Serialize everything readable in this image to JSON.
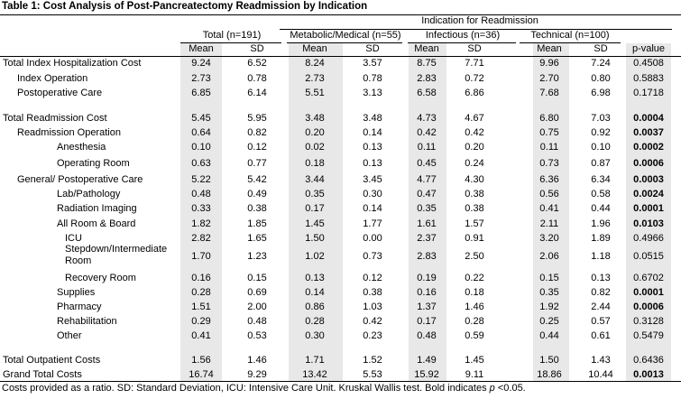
{
  "caption": "Table 1: Cost Analysis of Post-Pancreatectomy Readmission by Indication",
  "group_header": "Indication for Readmission",
  "column_groups": [
    {
      "label": "Total (n=191)"
    },
    {
      "label": "Metabolic/Medical (n=55)"
    },
    {
      "label": "Infectious (n=36)"
    },
    {
      "label": "Technical (n=100)"
    }
  ],
  "subheaders": [
    "Mean",
    "SD",
    "Mean",
    "SD",
    "Mean",
    "SD",
    "Mean",
    "SD",
    "p-value"
  ],
  "rows": [
    {
      "label": "Total Index Hospitalization Cost",
      "indent": 0,
      "values": [
        "9.24",
        "6.52",
        "8.24",
        "3.57",
        "8.75",
        "7.71",
        "9.96",
        "7.24",
        "0.4508"
      ],
      "p_bold": false
    },
    {
      "label": "Index Operation",
      "indent": 1,
      "values": [
        "2.73",
        "0.78",
        "2.73",
        "0.78",
        "2.83",
        "0.72",
        "2.70",
        "0.80",
        "0.5883"
      ],
      "p_bold": false
    },
    {
      "label": "Postoperative Care",
      "indent": 1,
      "values": [
        "6.85",
        "6.14",
        "5.51",
        "3.13",
        "6.58",
        "6.86",
        "7.68",
        "6.98",
        "0.1718"
      ],
      "p_bold": false
    },
    {
      "label": "Total Readmission Cost",
      "indent": 0,
      "values": [
        "5.45",
        "5.95",
        "3.48",
        "3.48",
        "4.73",
        "4.67",
        "6.80",
        "7.03",
        "0.0004"
      ],
      "p_bold": true
    },
    {
      "label": "Readmission Operation",
      "indent": 1,
      "values": [
        "0.64",
        "0.82",
        "0.20",
        "0.14",
        "0.42",
        "0.42",
        "0.75",
        "0.92",
        "0.0037"
      ],
      "p_bold": true
    },
    {
      "label": "Anesthesia",
      "indent": 2,
      "values": [
        "0.10",
        "0.12",
        "0.02",
        "0.13",
        "0.11",
        "0.20",
        "0.11",
        "0.10",
        "0.0002"
      ],
      "p_bold": true
    },
    {
      "label": "Operating Room",
      "indent": 2,
      "values": [
        "0.63",
        "0.77",
        "0.18",
        "0.13",
        "0.45",
        "0.24",
        "0.73",
        "0.87",
        "0.0006"
      ],
      "p_bold": true
    },
    {
      "label": "General/ Postoperative Care",
      "indent": 1,
      "values": [
        "5.22",
        "5.42",
        "3.44",
        "3.45",
        "4.77",
        "4.30",
        "6.36",
        "6.34",
        "0.0003"
      ],
      "p_bold": true
    },
    {
      "label": "Lab/Pathology",
      "indent": 2,
      "values": [
        "0.48",
        "0.49",
        "0.35",
        "0.30",
        "0.47",
        "0.38",
        "0.56",
        "0.58",
        "0.0024"
      ],
      "p_bold": true
    },
    {
      "label": "Radiation Imaging",
      "indent": 2,
      "values": [
        "0.33",
        "0.38",
        "0.17",
        "0.14",
        "0.35",
        "0.38",
        "0.41",
        "0.44",
        "0.0001"
      ],
      "p_bold": true
    },
    {
      "label": "All Room & Board",
      "indent": 2,
      "values": [
        "1.82",
        "1.85",
        "1.45",
        "1.77",
        "1.61",
        "1.57",
        "2.11",
        "1.96",
        "0.0103"
      ],
      "p_bold": true
    },
    {
      "label": "ICU",
      "indent": 3,
      "values": [
        "2.82",
        "1.65",
        "1.50",
        "0.00",
        "2.37",
        "0.91",
        "3.20",
        "1.89",
        "0.4966"
      ],
      "p_bold": false
    },
    {
      "label": "Stepdown/Intermediate Room",
      "indent": 3,
      "values": [
        "1.70",
        "1.23",
        "1.02",
        "0.73",
        "2.83",
        "2.50",
        "2.06",
        "1.18",
        "0.0515"
      ],
      "p_bold": false
    },
    {
      "label": "Recovery Room",
      "indent": 3,
      "values": [
        "0.16",
        "0.15",
        "0.13",
        "0.12",
        "0.19",
        "0.22",
        "0.15",
        "0.13",
        "0.6702"
      ],
      "p_bold": false
    },
    {
      "label": "Supplies",
      "indent": 2,
      "values": [
        "0.28",
        "0.69",
        "0.14",
        "0.38",
        "0.16",
        "0.18",
        "0.35",
        "0.82",
        "0.0001"
      ],
      "p_bold": true
    },
    {
      "label": "Pharmacy",
      "indent": 2,
      "values": [
        "1.51",
        "2.00",
        "0.86",
        "1.03",
        "1.37",
        "1.46",
        "1.92",
        "2.44",
        "0.0006"
      ],
      "p_bold": true
    },
    {
      "label": "Rehabilitation",
      "indent": 2,
      "values": [
        "0.29",
        "0.48",
        "0.28",
        "0.42",
        "0.17",
        "0.28",
        "0.25",
        "0.57",
        "0.3128"
      ],
      "p_bold": false
    },
    {
      "label": "Other",
      "indent": 2,
      "values": [
        "0.41",
        "0.53",
        "0.30",
        "0.23",
        "0.48",
        "0.59",
        "0.44",
        "0.61",
        "0.5479"
      ],
      "p_bold": false
    },
    {
      "label": "Total Outpatient Costs",
      "indent": 0,
      "values": [
        "1.56",
        "1.46",
        "1.71",
        "1.52",
        "1.49",
        "1.45",
        "1.50",
        "1.43",
        "0.6436"
      ],
      "p_bold": false
    },
    {
      "label": "Grand Total Costs",
      "indent": 0,
      "values": [
        "16.74",
        "9.29",
        "13.42",
        "5.53",
        "15.92",
        "9.11",
        "18.86",
        "10.44",
        "0.0013"
      ],
      "p_bold": true
    }
  ],
  "footnote": {
    "text": "Costs provided as a ratio. SD: Standard Deviation, ICU: Intensive Care Unit. Kruskal Wallis test. Bold indicates ",
    "italic": "p",
    "tail": " <0.05."
  }
}
